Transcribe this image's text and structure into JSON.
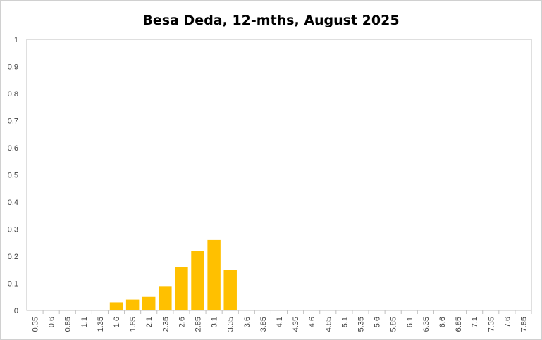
{
  "chart_data": {
    "type": "bar",
    "title": "Besa Deda, 12-mths, August 2025",
    "xlabel": "",
    "ylabel": "",
    "ylim": [
      0,
      1
    ],
    "yticks": [
      "0",
      "0.1",
      "0.2",
      "0.3",
      "0.4",
      "0.5",
      "0.6",
      "0.7",
      "0.8",
      "0.9",
      "1"
    ],
    "categories": [
      "0.35",
      "0.6",
      "0.85",
      "1.1",
      "1.35",
      "1.6",
      "1.85",
      "2.1",
      "2.35",
      "2.6",
      "2.85",
      "3.1",
      "3.35",
      "3.6",
      "3.85",
      "4.1",
      "4.35",
      "4.6",
      "4.85",
      "5.1",
      "5.35",
      "5.6",
      "5.85",
      "6.1",
      "6.35",
      "6.6",
      "6.85",
      "7.1",
      "7.35",
      "7.6",
      "7.85"
    ],
    "values": [
      0,
      0,
      0,
      0,
      0,
      0.03,
      0.04,
      0.05,
      0.09,
      0.16,
      0.22,
      0.26,
      0.15,
      0,
      0,
      0,
      0,
      0,
      0,
      0,
      0,
      0,
      0,
      0,
      0,
      0,
      0,
      0,
      0,
      0,
      0
    ],
    "grid": false,
    "legend": "none",
    "colors": {
      "bar": "#FFC000",
      "axis": "#bfbfbf",
      "text": "#404040"
    }
  }
}
